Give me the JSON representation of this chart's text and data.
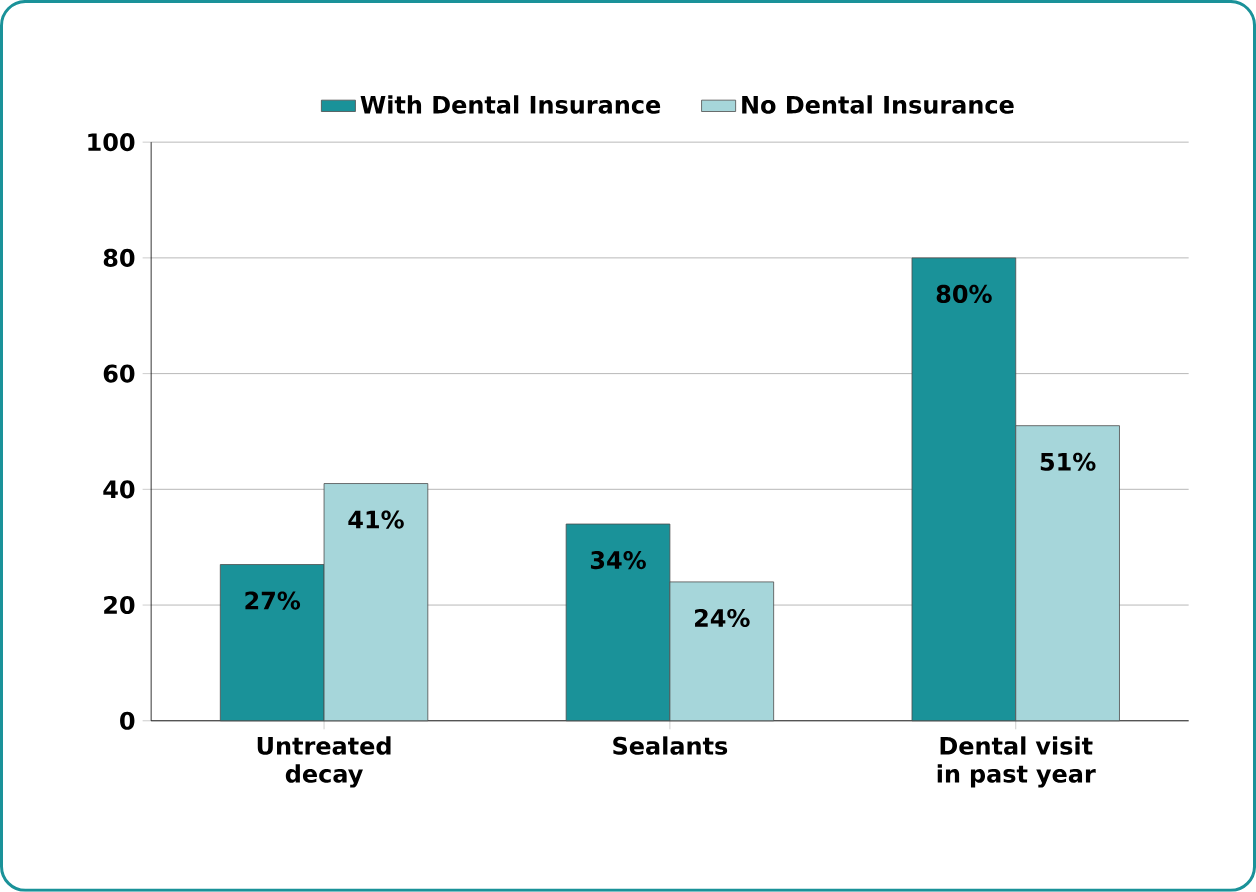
{
  "chart_data": {
    "type": "bar",
    "categories": [
      "Untreated decay",
      "Sealants",
      "Dental visit in past year"
    ],
    "series": [
      {
        "name": "With Dental Insurance",
        "color": "#1a9299",
        "values": [
          27,
          34,
          80
        ],
        "value_labels": [
          "27%",
          "34%",
          "80%"
        ]
      },
      {
        "name": "No Dental Insurance",
        "color": "#a6d6da",
        "values": [
          41,
          24,
          51
        ],
        "value_labels": [
          "41%",
          "24%",
          "51%"
        ]
      }
    ],
    "ylim": [
      0,
      100
    ],
    "yticks": [
      0,
      20,
      40,
      60,
      80,
      100
    ],
    "grid": "y",
    "legend": "top"
  }
}
